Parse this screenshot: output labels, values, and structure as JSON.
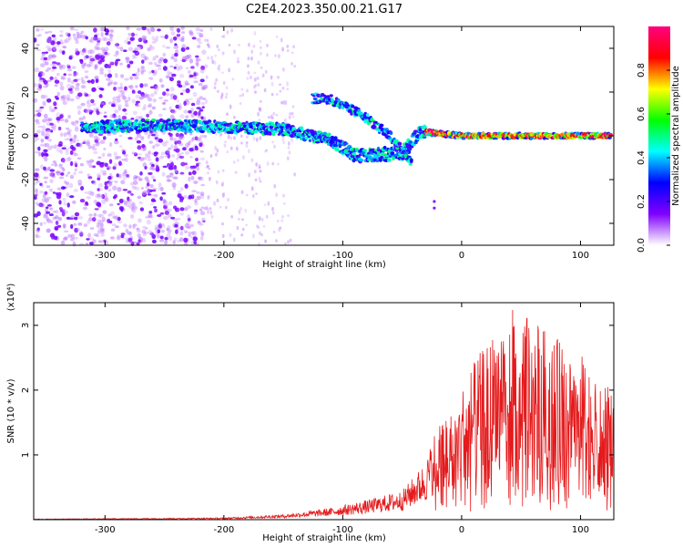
{
  "title": "C2E4.2023.350.00.21.G17",
  "chart_data": [
    {
      "type": "heatmap",
      "xlabel": "Height of straight line (km)",
      "ylabel": "Frequency (Hz)",
      "xlim": [
        -360,
        128
      ],
      "ylim": [
        -50,
        50
      ],
      "xticks": [
        -300,
        -200,
        -100,
        0,
        100
      ],
      "yticks": [
        -40,
        -20,
        0,
        20,
        40
      ],
      "colorbar": {
        "label": "Normalized spectral amplitude",
        "range": [
          0,
          1
        ],
        "ticks": [
          "0.0",
          "0.2",
          "0.4",
          "0.6",
          "0.8"
        ],
        "colormap": [
          "#ffffff",
          "#8000ff",
          "#0000ff",
          "#00ffff",
          "#00ff00",
          "#ffff00",
          "#ff0000",
          "#ff0080"
        ]
      },
      "features": {
        "noise_region_x": [
          -360,
          -215
        ],
        "sparse_noise_x": [
          -215,
          -140
        ],
        "main_trace": [
          {
            "x": -320,
            "f": 4
          },
          {
            "x": -250,
            "f": 5
          },
          {
            "x": -200,
            "f": 4
          },
          {
            "x": -150,
            "f": 3
          },
          {
            "x": -110,
            "f": -2
          },
          {
            "x": -90,
            "f": -9
          },
          {
            "x": -50,
            "f": -8
          },
          {
            "x": -35,
            "f": 2
          },
          {
            "x": 0,
            "f": 0
          },
          {
            "x": 128,
            "f": 0
          }
        ],
        "upper_branch": [
          {
            "x": -125,
            "f": 17
          },
          {
            "x": -112,
            "f": 17
          },
          {
            "x": -85,
            "f": 10
          },
          {
            "x": -60,
            "f": 0
          },
          {
            "x": -42,
            "f": -12
          }
        ],
        "isolated_points": [
          {
            "x": -23,
            "f": -30
          },
          {
            "x": -23,
            "f": -33
          }
        ]
      }
    },
    {
      "type": "line",
      "xlabel": "Height of straight line (km)",
      "ylabel": "SNR (10 * v/v)",
      "y_multiplier": "(x10⁴)",
      "xlim": [
        -360,
        128
      ],
      "ylim": [
        0,
        3.35
      ],
      "xticks": [
        -300,
        -200,
        -100,
        0,
        100
      ],
      "yticks": [
        1,
        2,
        3
      ],
      "color": "#e41a1c",
      "envelope": [
        {
          "x": -360,
          "y": 0.01
        },
        {
          "x": -200,
          "y": 0.03
        },
        {
          "x": -150,
          "y": 0.08
        },
        {
          "x": -110,
          "y": 0.18
        },
        {
          "x": -80,
          "y": 0.3
        },
        {
          "x": -50,
          "y": 0.45
        },
        {
          "x": -30,
          "y": 0.9
        },
        {
          "x": -20,
          "y": 1.55
        },
        {
          "x": -5,
          "y": 1.7
        },
        {
          "x": 5,
          "y": 2.3
        },
        {
          "x": 20,
          "y": 2.7
        },
        {
          "x": 40,
          "y": 3.3
        },
        {
          "x": 60,
          "y": 3.1
        },
        {
          "x": 80,
          "y": 2.8
        },
        {
          "x": 100,
          "y": 2.6
        },
        {
          "x": 115,
          "y": 2.0
        },
        {
          "x": 128,
          "y": 2.1
        }
      ]
    }
  ]
}
